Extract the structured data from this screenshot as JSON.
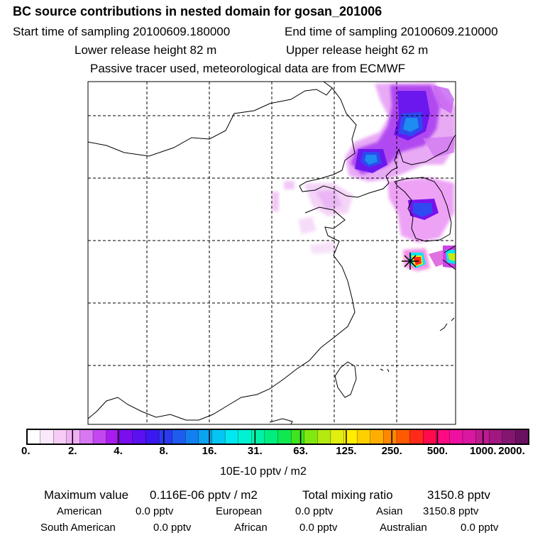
{
  "header": {
    "title": "BC  source contributions in nested domain for gosan_201006",
    "start_label": "Start time of sampling 20100609.180000",
    "end_label": "End time of sampling 20100609.210000",
    "lower_label": "Lower release height   82 m",
    "upper_label": "Upper release height   62 m",
    "tracer_note": "Passive tracer used, meteorological data are from ECMWF"
  },
  "colorbar": {
    "labels": [
      "0.",
      "2.",
      "4.",
      "8.",
      "16.",
      "31.",
      "63.",
      "125.",
      "250.",
      "500.",
      "1000.",
      "2000."
    ],
    "colors": [
      "#ffffff",
      "#fbe8fb",
      "#f6ccf6",
      "#f0aef5",
      "#d777f2",
      "#c247f0",
      "#a81cef",
      "#7a0eee",
      "#5a10f0",
      "#3b18f0",
      "#2a3af0",
      "#1e5cf0",
      "#1280f0",
      "#0aa4f0",
      "#05c6f2",
      "#00e8f0",
      "#00f2d0",
      "#00f2a8",
      "#00ee7e",
      "#10e850",
      "#3ee41e",
      "#80e810",
      "#b4ea10",
      "#e0ee10",
      "#ffee00",
      "#ffd000",
      "#ffae00",
      "#ff8800",
      "#ff5a00",
      "#ff2a1a",
      "#ff0a4a",
      "#ff0a80",
      "#f010a0",
      "#d818a0",
      "#be1a90",
      "#a01880",
      "#841670",
      "#6a1060"
    ],
    "unit": "10E-10 pptv / m2"
  },
  "summary": {
    "max_label": "Maximum value",
    "max_value": "0.116E-06 pptv / m2",
    "total_label": "Total mixing ratio",
    "total_value": "3150.8 pptv"
  },
  "regions": [
    {
      "name": "American",
      "value": "0.0 pptv"
    },
    {
      "name": "European",
      "value": "0.0 pptv"
    },
    {
      "name": "Asian",
      "value": "3150.8 pptv"
    },
    {
      "name": "South American",
      "value": "0.0 pptv"
    },
    {
      "name": "African",
      "value": "0.0 pptv"
    },
    {
      "name": "Australian",
      "value": "0.0 pptv"
    }
  ],
  "colors": {
    "background": "#ffffff",
    "frame": "#000000",
    "marker": "#000000"
  }
}
